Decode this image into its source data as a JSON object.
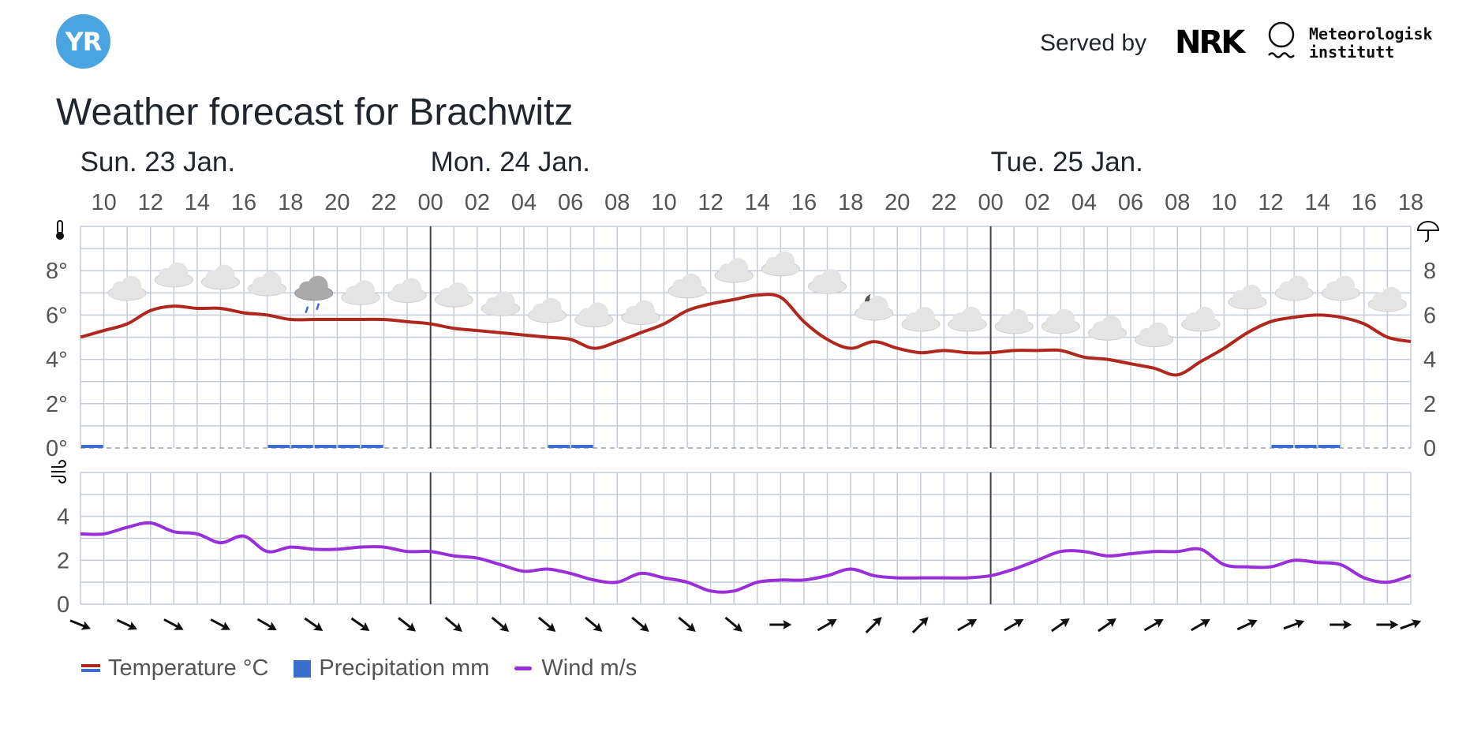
{
  "header": {
    "logo_text": "YR",
    "served_by": "Served by",
    "nrk_logo": "NRK",
    "met_logo_line1": "Meteorologisk",
    "met_logo_line2": "institutt",
    "title": "Weather forecast for Brachwitz"
  },
  "colors": {
    "temperature": "#b0271e",
    "precipitation": "#3a6fd0",
    "wind": "#9a2ed8",
    "grid": "#c5ccd6",
    "logo": "#4aa4df"
  },
  "chart_data": {
    "type": "line",
    "days": [
      {
        "label": "Sun. 23 Jan.",
        "start_hour": 10
      },
      {
        "label": "Mon. 24 Jan.",
        "start_hour": 24
      },
      {
        "label": "Tue. 25 Jan.",
        "start_hour": 48
      }
    ],
    "hour_range": [
      9,
      66
    ],
    "hour_tick_labels": [
      "10",
      "12",
      "14",
      "16",
      "18",
      "20",
      "22",
      "00",
      "02",
      "04",
      "06",
      "08",
      "10",
      "12",
      "14",
      "16",
      "18",
      "20",
      "22",
      "00",
      "02",
      "04",
      "06",
      "08",
      "10",
      "12",
      "14",
      "16",
      "18"
    ],
    "hour_tick_values": [
      10,
      12,
      14,
      16,
      18,
      20,
      22,
      24,
      26,
      28,
      30,
      32,
      34,
      36,
      38,
      40,
      42,
      44,
      46,
      48,
      50,
      52,
      54,
      56,
      58,
      60,
      62,
      64,
      66
    ],
    "temperature": {
      "unit": "°C",
      "ylim": [
        0,
        10
      ],
      "y_tick_labels_left": [
        "0°",
        "2°",
        "4°",
        "6°",
        "8°"
      ],
      "y_tick_labels_right": [
        "0",
        "2",
        "4",
        "6",
        "8"
      ],
      "y_tick_values": [
        0,
        2,
        4,
        6,
        8
      ],
      "x": [
        9,
        10,
        11,
        12,
        13,
        14,
        15,
        16,
        17,
        18,
        19,
        20,
        21,
        22,
        23,
        24,
        25,
        26,
        27,
        28,
        29,
        30,
        31,
        32,
        33,
        34,
        35,
        36,
        37,
        38,
        39,
        40,
        41,
        42,
        43,
        44,
        45,
        46,
        47,
        48,
        49,
        50,
        51,
        52,
        53,
        54,
        55,
        56,
        57,
        58,
        59,
        60,
        61,
        62,
        63,
        64,
        65,
        66
      ],
      "values": [
        5.0,
        5.3,
        5.6,
        6.2,
        6.4,
        6.3,
        6.3,
        6.1,
        6.0,
        5.8,
        5.8,
        5.8,
        5.8,
        5.8,
        5.7,
        5.6,
        5.4,
        5.3,
        5.2,
        5.1,
        5.0,
        4.9,
        4.5,
        4.8,
        5.2,
        5.6,
        6.2,
        6.5,
        6.7,
        6.9,
        6.8,
        5.7,
        4.9,
        4.5,
        4.8,
        4.5,
        4.3,
        4.4,
        4.3,
        4.3,
        4.4,
        4.4,
        4.4,
        4.1,
        4.0,
        3.8,
        3.6,
        3.3,
        3.9,
        4.5,
        5.2,
        5.7,
        5.9,
        6.0,
        5.9,
        5.6,
        5.0,
        4.8
      ]
    },
    "precipitation": {
      "unit": "mm",
      "bars": [
        {
          "x": 10,
          "value": 0.1
        },
        {
          "x": 18,
          "value": 0.1
        },
        {
          "x": 19,
          "value": 0.1
        },
        {
          "x": 20,
          "value": 0.1
        },
        {
          "x": 21,
          "value": 0.1
        },
        {
          "x": 22,
          "value": 0.1
        },
        {
          "x": 30,
          "value": 0.1
        },
        {
          "x": 31,
          "value": 0.1
        },
        {
          "x": 61,
          "value": 0.1
        },
        {
          "x": 62,
          "value": 0.1
        },
        {
          "x": 63,
          "value": 0.1
        }
      ]
    },
    "wind": {
      "unit": "m/s",
      "ylim": [
        0,
        6
      ],
      "y_tick_labels": [
        "0",
        "2",
        "4"
      ],
      "y_tick_values": [
        0,
        2,
        4
      ],
      "x": [
        9,
        10,
        11,
        12,
        13,
        14,
        15,
        16,
        17,
        18,
        19,
        20,
        21,
        22,
        23,
        24,
        25,
        26,
        27,
        28,
        29,
        30,
        31,
        32,
        33,
        34,
        35,
        36,
        37,
        38,
        39,
        40,
        41,
        42,
        43,
        44,
        45,
        46,
        47,
        48,
        49,
        50,
        51,
        52,
        53,
        54,
        55,
        56,
        57,
        58,
        59,
        60,
        61,
        62,
        63,
        64,
        65,
        66
      ],
      "values": [
        3.2,
        3.2,
        3.5,
        3.7,
        3.3,
        3.2,
        2.8,
        3.1,
        2.4,
        2.6,
        2.5,
        2.5,
        2.6,
        2.6,
        2.4,
        2.4,
        2.2,
        2.1,
        1.8,
        1.5,
        1.6,
        1.4,
        1.1,
        1.0,
        1.4,
        1.2,
        1.0,
        0.6,
        0.6,
        1.0,
        1.1,
        1.1,
        1.3,
        1.6,
        1.3,
        1.2,
        1.2,
        1.2,
        1.2,
        1.3,
        1.6,
        2.0,
        2.4,
        2.4,
        2.2,
        2.3,
        2.4,
        2.4,
        2.5,
        1.8,
        1.7,
        1.7,
        2.0,
        1.9,
        1.8,
        1.2,
        1.0,
        1.3
      ]
    },
    "weather_symbols": [
      {
        "x": 11,
        "temp": 7.2,
        "icon": "cloudy-icon"
      },
      {
        "x": 13,
        "temp": 7.8,
        "icon": "cloudy-icon"
      },
      {
        "x": 15,
        "temp": 7.7,
        "icon": "cloudy-icon"
      },
      {
        "x": 17,
        "temp": 7.4,
        "icon": "cloudy-icon"
      },
      {
        "x": 19,
        "temp": 7.2,
        "icon": "light-rain-icon"
      },
      {
        "x": 21,
        "temp": 7.0,
        "icon": "cloudy-icon"
      },
      {
        "x": 23,
        "temp": 7.1,
        "icon": "cloudy-icon"
      },
      {
        "x": 25,
        "temp": 6.9,
        "icon": "cloudy-icon"
      },
      {
        "x": 27,
        "temp": 6.5,
        "icon": "cloudy-icon"
      },
      {
        "x": 29,
        "temp": 6.2,
        "icon": "cloudy-icon"
      },
      {
        "x": 31,
        "temp": 6.0,
        "icon": "cloudy-icon"
      },
      {
        "x": 33,
        "temp": 6.1,
        "icon": "cloudy-icon"
      },
      {
        "x": 35,
        "temp": 7.3,
        "icon": "cloudy-icon"
      },
      {
        "x": 37,
        "temp": 8.0,
        "icon": "cloudy-icon"
      },
      {
        "x": 39,
        "temp": 8.3,
        "icon": "cloudy-icon"
      },
      {
        "x": 41,
        "temp": 7.5,
        "icon": "cloudy-icon"
      },
      {
        "x": 43,
        "temp": 6.3,
        "icon": "cloudy-night-icon"
      },
      {
        "x": 45,
        "temp": 5.8,
        "icon": "cloudy-icon"
      },
      {
        "x": 47,
        "temp": 5.8,
        "icon": "cloudy-icon"
      },
      {
        "x": 49,
        "temp": 5.7,
        "icon": "cloudy-icon"
      },
      {
        "x": 51,
        "temp": 5.7,
        "icon": "cloudy-icon"
      },
      {
        "x": 53,
        "temp": 5.4,
        "icon": "cloudy-icon"
      },
      {
        "x": 55,
        "temp": 5.1,
        "icon": "cloudy-icon"
      },
      {
        "x": 57,
        "temp": 5.8,
        "icon": "cloudy-icon"
      },
      {
        "x": 59,
        "temp": 6.8,
        "icon": "cloudy-icon"
      },
      {
        "x": 61,
        "temp": 7.2,
        "icon": "cloudy-icon"
      },
      {
        "x": 63,
        "temp": 7.2,
        "icon": "cloudy-icon"
      },
      {
        "x": 65,
        "temp": 6.7,
        "icon": "cloudy-icon"
      }
    ],
    "wind_directions_deg": [
      112,
      115,
      118,
      118,
      120,
      125,
      125,
      128,
      130,
      130,
      130,
      130,
      130,
      130,
      130,
      90,
      60,
      45,
      45,
      60,
      60,
      55,
      55,
      60,
      60,
      65,
      70,
      90,
      90,
      70
    ],
    "wind_direction_hours": [
      9,
      11,
      13,
      15,
      17,
      19,
      21,
      23,
      25,
      27,
      29,
      31,
      33,
      35,
      37,
      39,
      41,
      43,
      45,
      47,
      49,
      51,
      53,
      55,
      57,
      59,
      61,
      63,
      65,
      66
    ],
    "legend": [
      {
        "key": "temperature",
        "label": "Temperature °C"
      },
      {
        "key": "precipitation",
        "label": "Precipitation mm"
      },
      {
        "key": "wind",
        "label": "Wind m/s"
      }
    ],
    "grid": true,
    "legend_position": "bottom-left"
  }
}
